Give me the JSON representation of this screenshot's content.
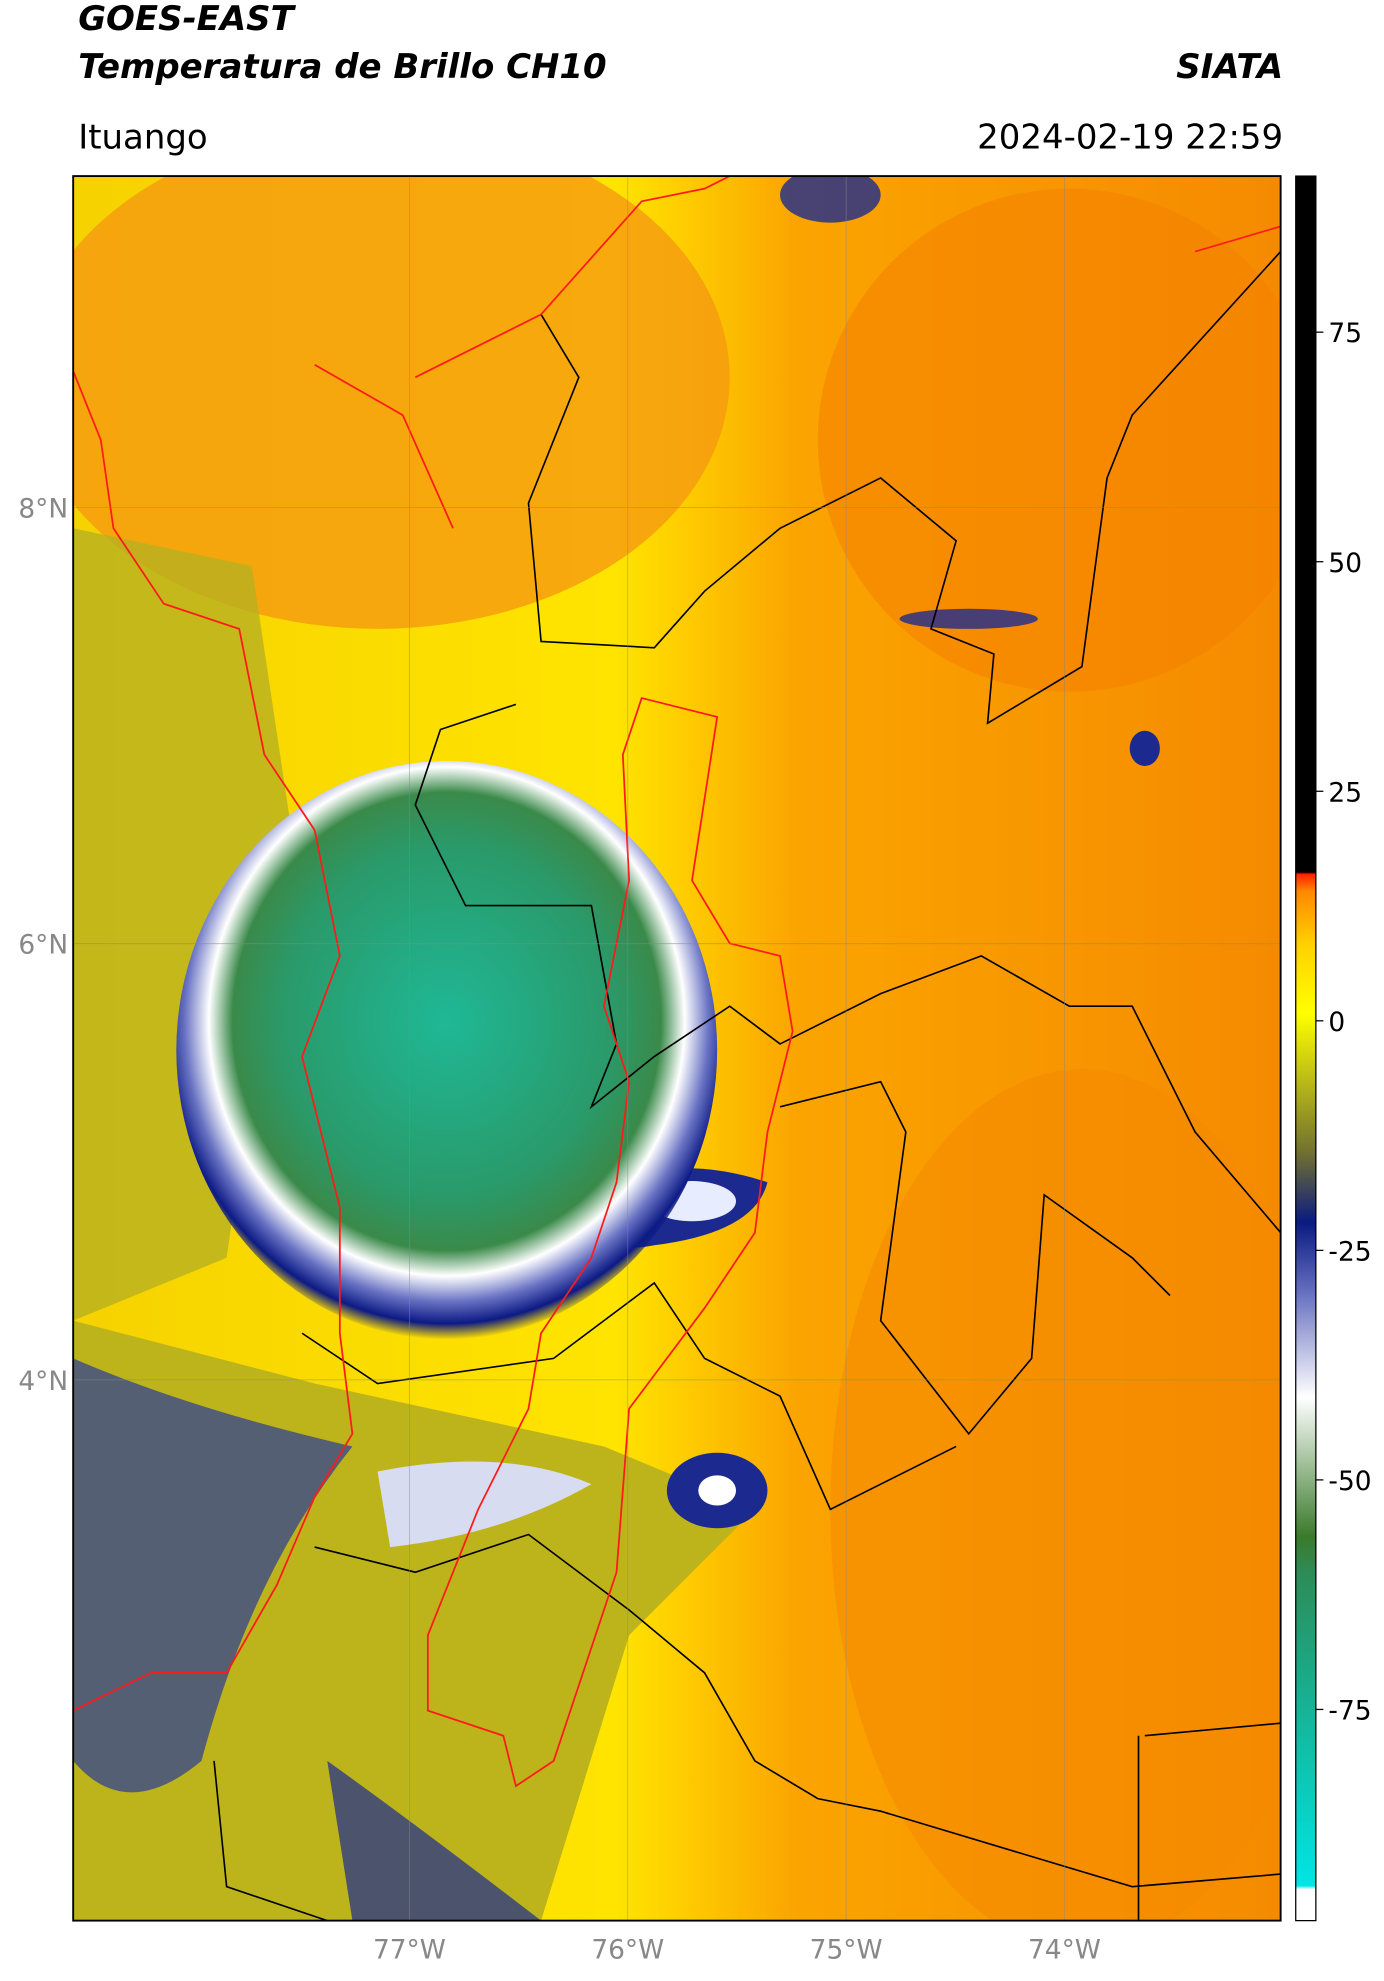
{
  "header": {
    "title": "GOES-EAST",
    "subtitle": "Temperatura de Brillo CH10",
    "source": "SIATA",
    "location": "Ituango",
    "datetime": "2024-02-19 22:59"
  },
  "map": {
    "xlim": [
      -78.54,
      -73.01
    ],
    "ylim": [
      1.52,
      9.52
    ],
    "xticks": [
      {
        "value": -77,
        "label": "77°W"
      },
      {
        "value": -76,
        "label": "76°W"
      },
      {
        "value": -75,
        "label": "75°W"
      },
      {
        "value": -74,
        "label": "74°W"
      }
    ],
    "yticks": [
      {
        "value": 4,
        "label": "4°N"
      },
      {
        "value": 6,
        "label": "6°N"
      },
      {
        "value": 8,
        "label": "8°N"
      }
    ],
    "grid": true
  },
  "colorbar": {
    "lim": [
      -98,
      92
    ],
    "ticks": [
      -75,
      -50,
      -25,
      0,
      25,
      50,
      75
    ]
  }
}
